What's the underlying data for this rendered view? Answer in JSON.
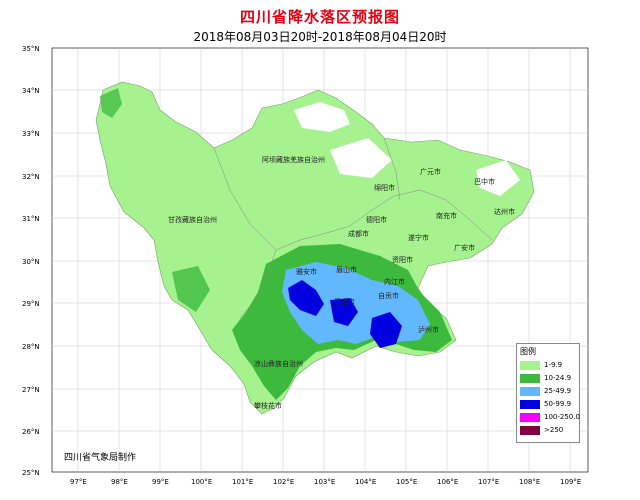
{
  "title": "四川省降水落区预报图",
  "subtitle": "2018年08月03日20时-2018年08月04日20时",
  "producer": "四川省气象局制作",
  "lat_labels": [
    "35°N",
    "34°N",
    "33°N",
    "32°N",
    "31°N",
    "30°N",
    "29°N",
    "28°N",
    "27°N",
    "26°N",
    "25°N"
  ],
  "lon_labels": [
    "97°E",
    "98°E",
    "99°E",
    "100°E",
    "101°E",
    "102°E",
    "103°E",
    "104°E",
    "105°E",
    "106°E",
    "107°E",
    "108°E",
    "109°E"
  ],
  "cities": [
    {
      "id": "aba",
      "label": "阿坝藏族羌族自治州"
    },
    {
      "id": "ganzi",
      "label": "甘孜藏族自治州"
    },
    {
      "id": "liangshan",
      "label": "凉山彝族自治州"
    },
    {
      "id": "guangyuan",
      "label": "广元市"
    },
    {
      "id": "bazhong",
      "label": "巴中市"
    },
    {
      "id": "mianyang",
      "label": "绵阳市"
    },
    {
      "id": "dazhou",
      "label": "达州市"
    },
    {
      "id": "deyang",
      "label": "德阳市"
    },
    {
      "id": "nanchong",
      "label": "南充市"
    },
    {
      "id": "chengdu",
      "label": "成都市"
    },
    {
      "id": "suining",
      "label": "遂宁市"
    },
    {
      "id": "guangan",
      "label": "广安市"
    },
    {
      "id": "yaan",
      "label": "雅安市"
    },
    {
      "id": "meishan",
      "label": "眉山市"
    },
    {
      "id": "ziyang",
      "label": "资阳市"
    },
    {
      "id": "neijiang",
      "label": "内江市"
    },
    {
      "id": "leshan",
      "label": "乐山市"
    },
    {
      "id": "zigong",
      "label": "自贡市"
    },
    {
      "id": "luzhou",
      "label": "泸州市"
    },
    {
      "id": "panzhihua",
      "label": "攀枝花市"
    }
  ],
  "legend": {
    "title": "图例",
    "items": [
      {
        "label": "1-9.9",
        "color": "#a6f28f"
      },
      {
        "label": "10-24.9",
        "color": "#3dba3d"
      },
      {
        "label": "25-49.9",
        "color": "#61b8ff"
      },
      {
        "label": "50-99.9",
        "color": "#0000e1"
      },
      {
        "label": "100-250.0",
        "color": "#fa00fa"
      },
      {
        "label": ">250",
        "color": "#800040"
      }
    ]
  }
}
